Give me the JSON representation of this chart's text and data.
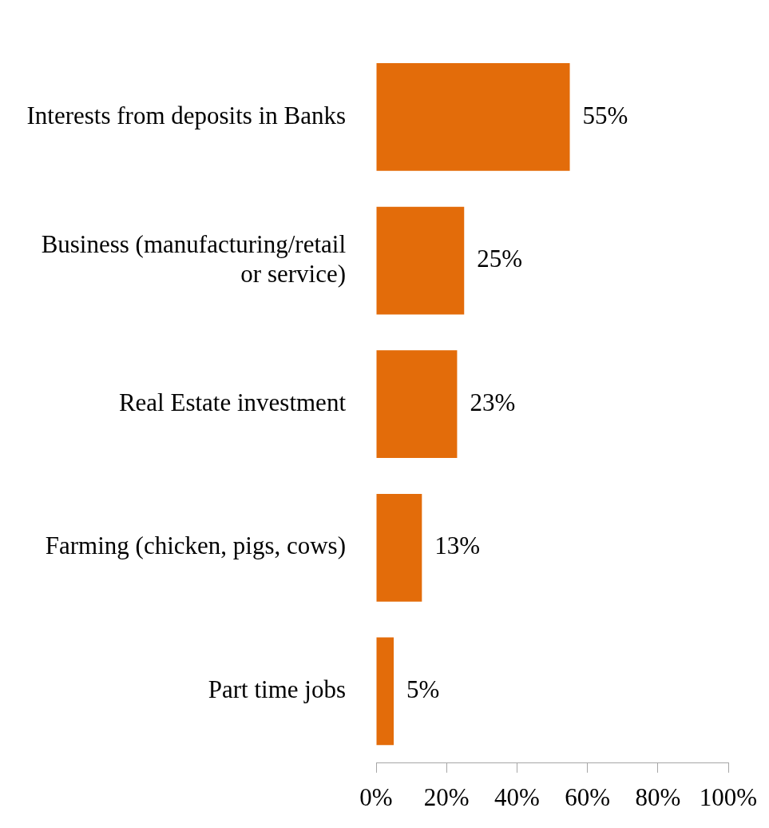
{
  "chart_data": {
    "type": "bar",
    "orientation": "horizontal",
    "categories": [
      "Interests from deposits in Banks",
      "Business (manufacturing/retail or service)",
      "Real Estate investment",
      "Farming (chicken, pigs, cows)",
      "Part time jobs"
    ],
    "values": [
      55,
      25,
      23,
      13,
      5
    ],
    "color": "#e36c0a",
    "value_labels": [
      "55%",
      "25%",
      "23%",
      "13%",
      "5%"
    ],
    "xlim": [
      0,
      100
    ],
    "xticks": [
      {
        "value": 0,
        "label": "0%"
      },
      {
        "value": 20,
        "label": "20%"
      },
      {
        "value": 40,
        "label": "40%"
      },
      {
        "value": 60,
        "label": "60%"
      },
      {
        "value": 80,
        "label": "80%"
      },
      {
        "value": 100,
        "label": "100%"
      }
    ],
    "grid": false,
    "legend": false
  }
}
